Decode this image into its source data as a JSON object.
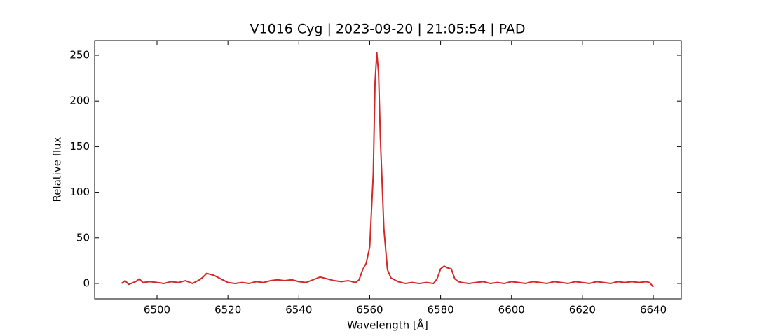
{
  "chart_data": {
    "type": "line",
    "title": "V1016 Cyg | 2023-09-20 | 21:05:54 | PAD",
    "x_label": "Wavelength [Å]",
    "y_label": "Relative flux",
    "color": "#d62728",
    "x": [
      6490,
      6491,
      6492,
      6494,
      6495,
      6496,
      6498,
      6500,
      6502,
      6504,
      6506,
      6508,
      6510,
      6512,
      6513,
      6514,
      6515,
      6516,
      6518,
      6520,
      6522,
      6524,
      6526,
      6528,
      6530,
      6532,
      6534,
      6536,
      6538,
      6540,
      6542,
      6544,
      6546,
      6547,
      6548,
      6550,
      6552,
      6554,
      6556,
      6557,
      6558,
      6559,
      6560,
      6561,
      6561.5,
      6562,
      6562.5,
      6563,
      6564,
      6565,
      6566,
      6568,
      6570,
      6572,
      6574,
      6576,
      6578,
      6579,
      6580,
      6581,
      6582,
      6583,
      6584,
      6585,
      6586,
      6588,
      6590,
      6592,
      6594,
      6596,
      6598,
      6600,
      6602,
      6604,
      6606,
      6608,
      6610,
      6612,
      6614,
      6616,
      6618,
      6620,
      6622,
      6624,
      6626,
      6628,
      6630,
      6632,
      6634,
      6636,
      6638,
      6639,
      6640
    ],
    "values": [
      0,
      3,
      -1,
      2,
      5,
      1,
      2,
      1,
      0,
      2,
      1,
      3,
      0,
      4,
      7,
      11,
      10,
      9,
      5,
      1,
      0,
      1,
      0,
      2,
      1,
      3,
      4,
      3,
      4,
      2,
      1,
      4,
      7,
      6,
      5,
      3,
      2,
      3,
      1,
      4,
      15,
      22,
      40,
      120,
      220,
      253,
      230,
      160,
      60,
      15,
      6,
      2,
      0,
      1,
      0,
      1,
      0,
      5,
      16,
      19,
      17,
      16,
      5,
      2,
      1,
      0,
      1,
      2,
      0,
      1,
      0,
      2,
      1,
      0,
      2,
      1,
      0,
      2,
      1,
      0,
      2,
      1,
      0,
      2,
      1,
      0,
      2,
      1,
      2,
      1,
      2,
      1,
      -4
    ],
    "xlim": [
      6482.4,
      6647.9
    ],
    "ylim": [
      -16.9,
      266.1
    ],
    "xticks": [
      6500,
      6520,
      6540,
      6560,
      6580,
      6600,
      6620,
      6640
    ],
    "yticks": [
      0,
      50,
      100,
      150,
      200,
      250
    ]
  }
}
